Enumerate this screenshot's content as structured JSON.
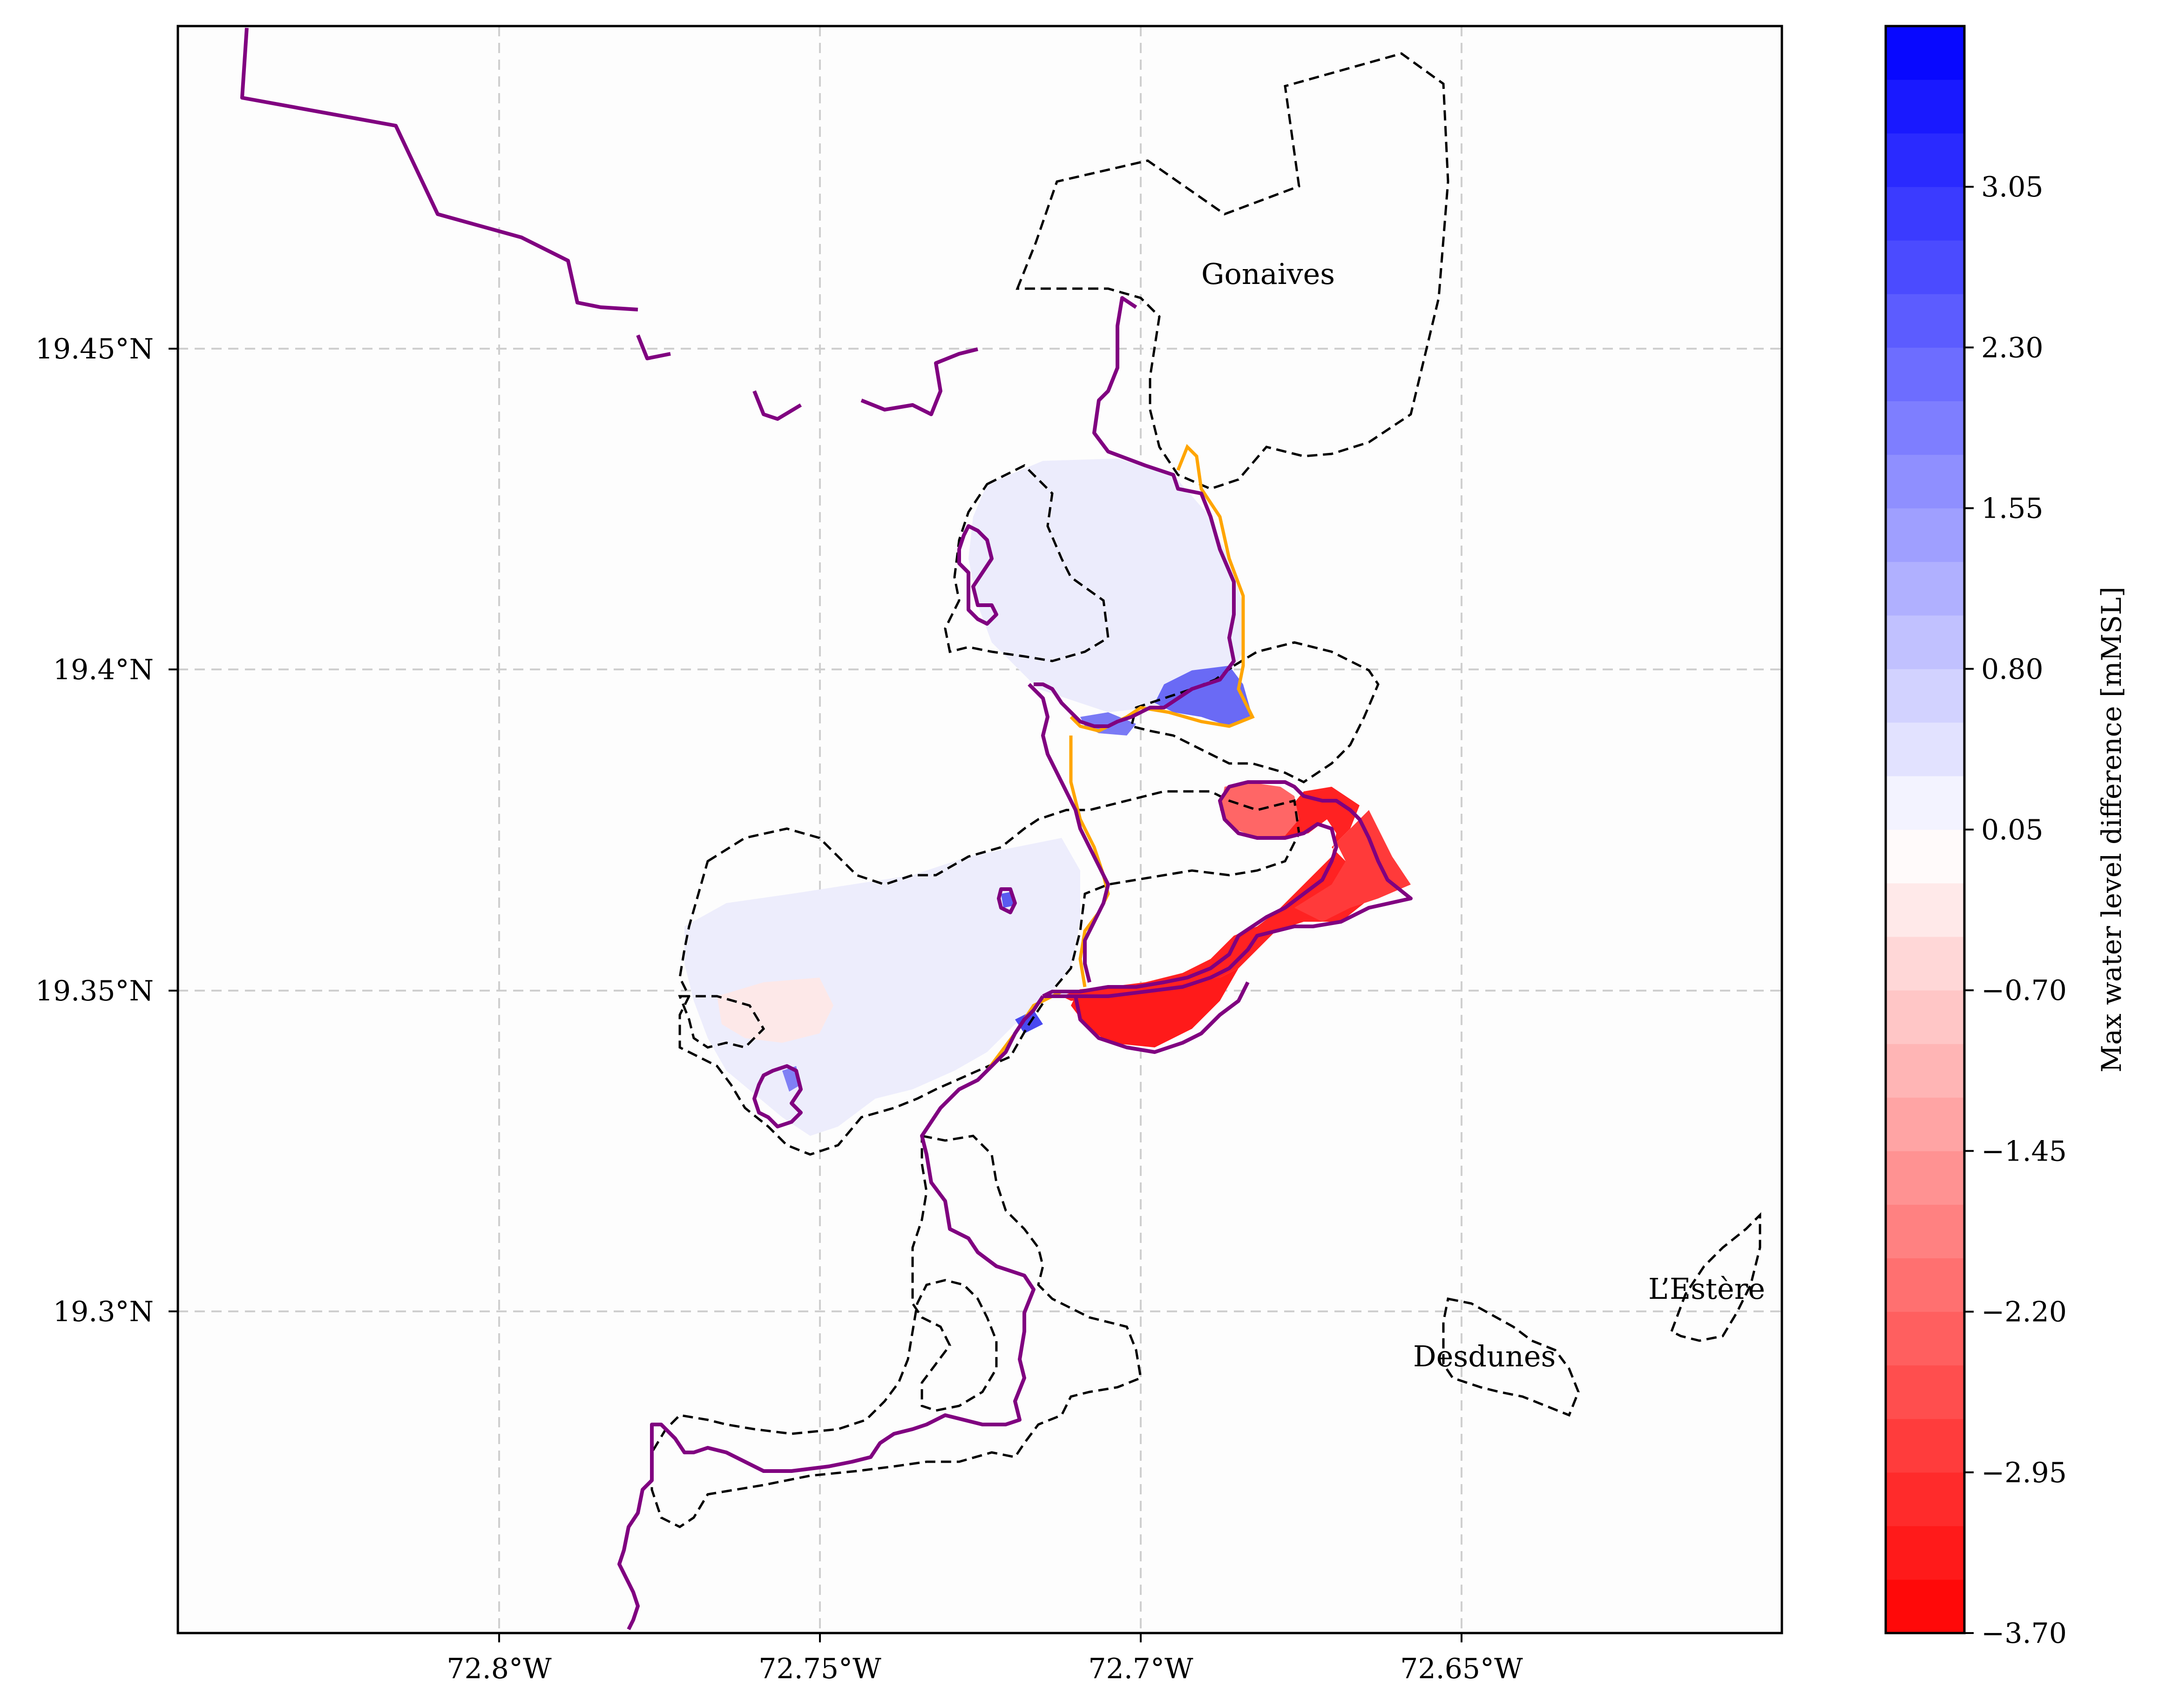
{
  "map": {
    "x_ticks": [
      "72.8°W",
      "72.75°W",
      "72.7°W",
      "72.65°W"
    ],
    "y_ticks": [
      "19.45°N",
      "19.4°N",
      "19.35°N",
      "19.3°N"
    ],
    "places": {
      "gonaives": "Gonaives",
      "lestere": "L’Estère",
      "desdunes": "Desdunes"
    },
    "colors": {
      "boundary_line": "#800080",
      "contour_line": "#ffa500",
      "dashed_regions": "#000000",
      "positive_diff": "#0000ff",
      "negative_diff": "#ff0000",
      "grid": "#cccccc"
    }
  },
  "colorbar": {
    "label": "Max water level difference [mMSL]",
    "ticks": [
      "3.05",
      "2.30",
      "1.55",
      "0.80",
      "0.05",
      "−0.70",
      "−1.45",
      "−2.20",
      "−2.95",
      "−3.70"
    ],
    "range": [
      -3.7,
      3.8
    ],
    "colormap": "bwr_r"
  }
}
